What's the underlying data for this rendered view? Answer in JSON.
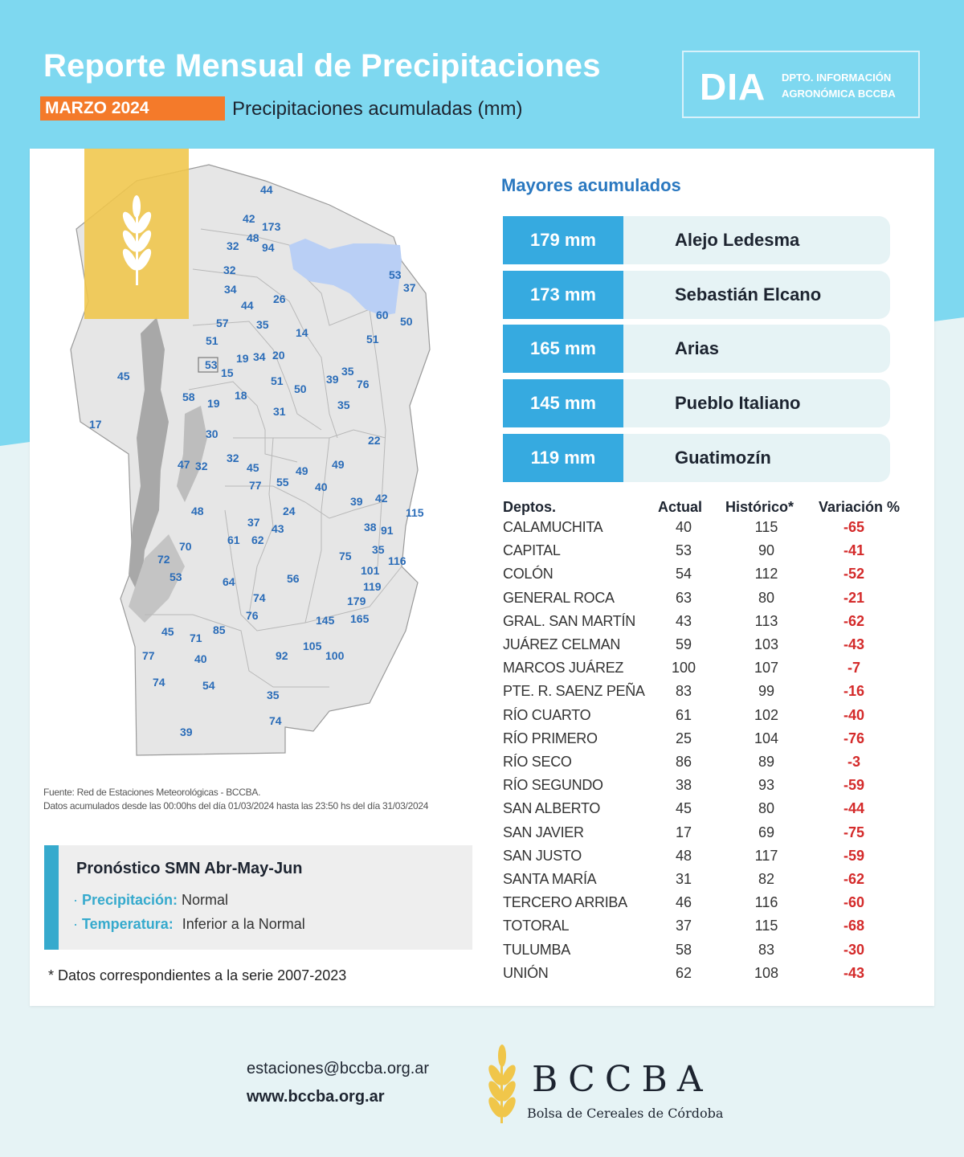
{
  "header": {
    "title": "Reporte Mensual de Precipitaciones",
    "month": "MARZO 2024",
    "subtitle": "Precipitaciones acumuladas (mm)",
    "dia_logo": "DIA",
    "dia_line1": "DPTO. INFORMACIÓN",
    "dia_line2": "AGRONÓMICA BCCBA"
  },
  "colors": {
    "sky": "#7ed8f0",
    "orange": "#f47a2a",
    "blue_label": "#2a6cb8",
    "accent": "#36aae0",
    "negative": "#d42a2a",
    "map_fill": "#e6e6e6",
    "lake": "#b9cff5",
    "badge_yellow": "#f0c64a"
  },
  "map": {
    "icon": "wheat-icon",
    "labels": [
      "44",
      "42",
      "173",
      "48",
      "32",
      "94",
      "32",
      "53",
      "37",
      "34",
      "44",
      "26",
      "60",
      "50",
      "57",
      "35",
      "14",
      "51",
      "51",
      "20",
      "34",
      "19",
      "53",
      "15",
      "35",
      "39",
      "76",
      "51",
      "50",
      "45",
      "58",
      "19",
      "18",
      "31",
      "35",
      "17",
      "30",
      "22",
      "47",
      "32",
      "32",
      "45",
      "49",
      "49",
      "77",
      "55",
      "40",
      "39",
      "42",
      "115",
      "48",
      "24",
      "37",
      "43",
      "38",
      "91",
      "61",
      "62",
      "70",
      "72",
      "75",
      "35",
      "116",
      "101",
      "53",
      "64",
      "56",
      "119",
      "74",
      "179",
      "76",
      "145",
      "165",
      "45",
      "71",
      "85",
      "77",
      "40",
      "92",
      "105",
      "100",
      "74",
      "54",
      "35",
      "74",
      "39"
    ]
  },
  "source": {
    "line1": "Fuente: Red de Estaciones Meteorológicas - BCCBA.",
    "line2": "Datos acumulados desde las 00:00hs del día 01/03/2024 hasta las 23:50 hs del día 31/03/2024"
  },
  "forecast": {
    "title": "Pronóstico SMN Abr-May-Jun",
    "precip_label": "Precipitación:",
    "precip_value": "Normal",
    "temp_label": "Temperatura:",
    "temp_value": "Inferior a la Normal"
  },
  "footnote": "* Datos correspondientes a la serie 2007-2023",
  "top": {
    "title": "Mayores acumulados",
    "items": [
      {
        "mm": "179 mm",
        "place": "Alejo Ledesma"
      },
      {
        "mm": "173 mm",
        "place": "Sebastián Elcano"
      },
      {
        "mm": "165 mm",
        "place": "Arias"
      },
      {
        "mm": "145 mm",
        "place": "Pueblo Italiano"
      },
      {
        "mm": "119 mm",
        "place": "Guatimozín"
      }
    ]
  },
  "table": {
    "headers": {
      "dep": "Deptos.",
      "actual": "Actual",
      "historico": "Histórico*",
      "variacion": "Variación %"
    },
    "rows": [
      {
        "dep": "CALAMUCHITA",
        "actual": "40",
        "hist": "115",
        "var": "-65"
      },
      {
        "dep": "CAPITAL",
        "actual": "53",
        "hist": "90",
        "var": "-41"
      },
      {
        "dep": "COLÓN",
        "actual": "54",
        "hist": "112",
        "var": "-52"
      },
      {
        "dep": "GENERAL ROCA",
        "actual": "63",
        "hist": "80",
        "var": "-21"
      },
      {
        "dep": "GRAL. SAN MARTÍN",
        "actual": "43",
        "hist": "113",
        "var": "-62"
      },
      {
        "dep": "JUÁREZ CELMAN",
        "actual": "59",
        "hist": "103",
        "var": "-43"
      },
      {
        "dep": "MARCOS JUÁREZ",
        "actual": "100",
        "hist": "107",
        "var": "-7"
      },
      {
        "dep": "PTE. R. SAENZ PEÑA",
        "actual": "83",
        "hist": "99",
        "var": "-16"
      },
      {
        "dep": "RÍO CUARTO",
        "actual": "61",
        "hist": "102",
        "var": "-40"
      },
      {
        "dep": "RÍO PRIMERO",
        "actual": "25",
        "hist": "104",
        "var": "-76"
      },
      {
        "dep": "RÍO SECO",
        "actual": "86",
        "hist": "89",
        "var": "-3"
      },
      {
        "dep": "RÍO SEGUNDO",
        "actual": "38",
        "hist": "93",
        "var": "-59"
      },
      {
        "dep": "SAN ALBERTO",
        "actual": "45",
        "hist": "80",
        "var": "-44"
      },
      {
        "dep": "SAN JAVIER",
        "actual": "17",
        "hist": "69",
        "var": "-75"
      },
      {
        "dep": "SAN JUSTO",
        "actual": "48",
        "hist": "117",
        "var": "-59"
      },
      {
        "dep": "SANTA MARÍA",
        "actual": "31",
        "hist": "82",
        "var": "-62"
      },
      {
        "dep": "TERCERO ARRIBA",
        "actual": "46",
        "hist": "116",
        "var": "-60"
      },
      {
        "dep": "TOTORAL",
        "actual": "37",
        "hist": "115",
        "var": "-68"
      },
      {
        "dep": "TULUMBA",
        "actual": "58",
        "hist": "83",
        "var": "-30"
      },
      {
        "dep": "UNIÓN",
        "actual": "62",
        "hist": "108",
        "var": "-43"
      }
    ]
  },
  "contact": {
    "email": "estaciones@bccba.org.ar",
    "web": "www.bccba.org.ar"
  },
  "brand": {
    "name": "BCCBA",
    "full": "Bolsa de Cereales de Córdoba",
    "icon": "wheat-icon"
  }
}
